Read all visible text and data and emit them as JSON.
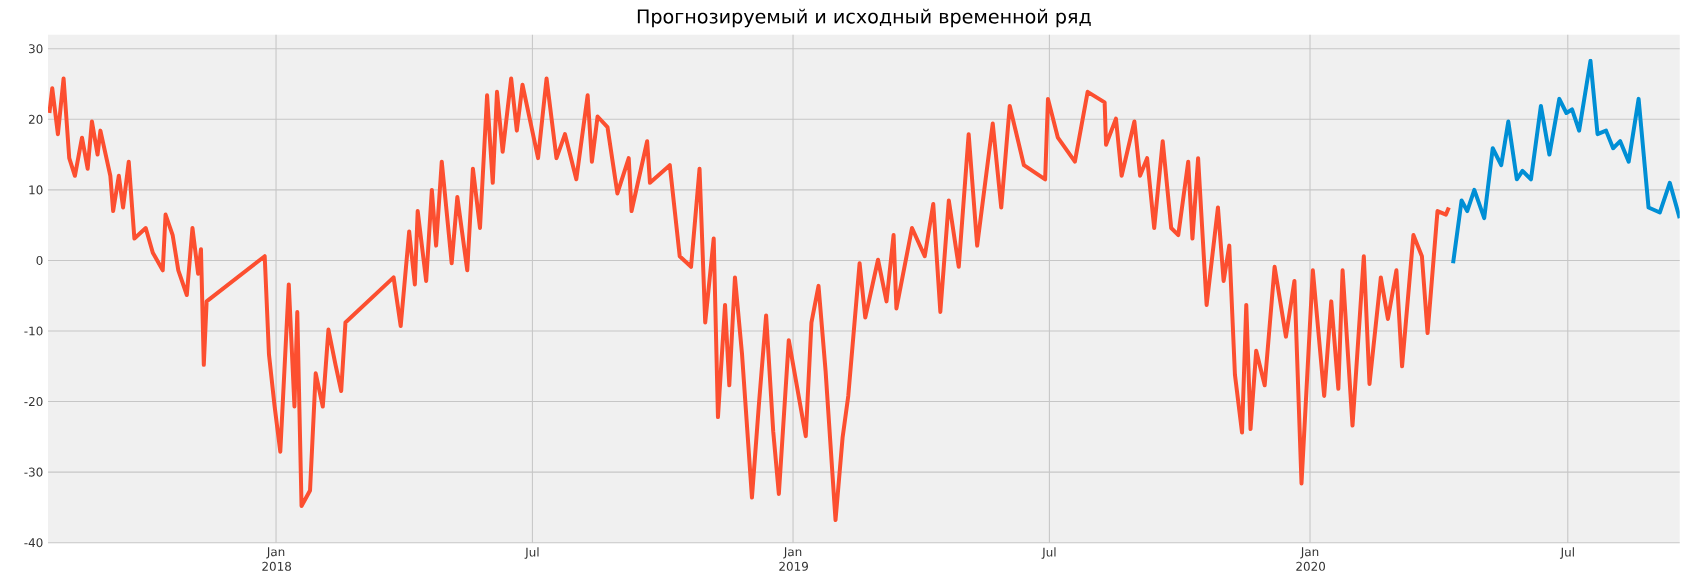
{
  "chart_data": {
    "type": "line",
    "title": "Прогнозируемый и исходный временной ряд",
    "grid": true,
    "line_style": "solid",
    "marker": "none",
    "xlim": [
      "2017-07-24",
      "2020-09-18"
    ],
    "ylim": [
      -40,
      32
    ],
    "yticks": [
      -40,
      -30,
      -20,
      -10,
      0,
      10,
      20,
      30
    ],
    "xticks": [
      {
        "value": "2018-01-01",
        "label": "Jan 2018"
      },
      {
        "value": "2018-07-01",
        "label": "Jul"
      },
      {
        "value": "2019-01-01",
        "label": "Jan 2019"
      },
      {
        "value": "2019-07-01",
        "label": "Jul"
      },
      {
        "value": "2020-01-01",
        "label": "Jan 2020"
      },
      {
        "value": "2020-07-01",
        "label": "Jul"
      }
    ],
    "series": [
      {
        "color": "#fc4f30",
        "x": [
          "2017-07-25",
          "2017-07-27",
          "2017-07-31",
          "2017-08-04",
          "2017-08-08",
          "2017-08-12",
          "2017-08-17",
          "2017-08-21",
          "2017-08-24",
          "2017-08-28",
          "2017-08-30",
          "2017-09-06",
          "2017-09-08",
          "2017-09-12",
          "2017-09-15",
          "2017-09-19",
          "2017-09-23",
          "2017-10-01",
          "2017-10-06",
          "2017-10-13",
          "2017-10-15",
          "2017-10-20",
          "2017-10-24",
          "2017-10-30",
          "2017-11-03",
          "2017-11-07",
          "2017-11-09",
          "2017-11-11",
          "2017-11-13",
          "2017-12-24",
          "2017-12-27",
          "2017-12-31",
          "2018-01-04",
          "2018-01-10",
          "2018-01-14",
          "2018-01-16",
          "2018-01-19",
          "2018-01-25",
          "2018-01-29",
          "2018-02-03",
          "2018-02-07",
          "2018-02-12",
          "2018-02-16",
          "2018-02-19",
          "2018-03-25",
          "2018-03-30",
          "2018-04-05",
          "2018-04-09",
          "2018-04-11",
          "2018-04-17",
          "2018-04-21",
          "2018-04-24",
          "2018-04-28",
          "2018-05-05",
          "2018-05-09",
          "2018-05-16",
          "2018-05-20",
          "2018-05-25",
          "2018-05-30",
          "2018-06-03",
          "2018-06-06",
          "2018-06-10",
          "2018-06-16",
          "2018-06-20",
          "2018-06-24",
          "2018-07-05",
          "2018-07-11",
          "2018-07-18",
          "2018-07-24",
          "2018-08-01",
          "2018-08-09",
          "2018-08-12",
          "2018-08-16",
          "2018-08-23",
          "2018-08-30",
          "2018-09-07",
          "2018-09-09",
          "2018-09-20",
          "2018-09-22",
          "2018-10-06",
          "2018-10-13",
          "2018-10-21",
          "2018-10-27",
          "2018-10-31",
          "2018-11-06",
          "2018-11-09",
          "2018-11-14",
          "2018-11-17",
          "2018-11-21",
          "2018-11-26",
          "2018-12-03",
          "2018-12-08",
          "2018-12-13",
          "2018-12-18",
          "2018-12-22",
          "2018-12-29",
          "2019-01-10",
          "2019-01-14",
          "2019-01-19",
          "2019-01-24",
          "2019-01-31",
          "2019-02-05",
          "2019-02-09",
          "2019-02-17",
          "2019-02-21",
          "2019-03-02",
          "2019-03-08",
          "2019-03-13",
          "2019-03-15",
          "2019-03-26",
          "2019-04-04",
          "2019-04-10",
          "2019-04-15",
          "2019-04-21",
          "2019-04-28",
          "2019-05-05",
          "2019-05-11",
          "2019-05-22",
          "2019-05-28",
          "2019-06-03",
          "2019-06-13",
          "2019-06-28",
          "2019-06-30",
          "2019-07-07",
          "2019-07-19",
          "2019-07-28",
          "2019-08-09",
          "2019-08-10",
          "2019-08-17",
          "2019-08-21",
          "2019-08-30",
          "2019-09-03",
          "2019-09-08",
          "2019-09-13",
          "2019-09-19",
          "2019-09-25",
          "2019-09-30",
          "2019-10-07",
          "2019-10-10",
          "2019-10-14",
          "2019-10-20",
          "2019-10-28",
          "2019-11-01",
          "2019-11-05",
          "2019-11-09",
          "2019-11-14",
          "2019-11-17",
          "2019-11-20",
          "2019-11-24",
          "2019-11-30",
          "2019-12-07",
          "2019-12-15",
          "2019-12-21",
          "2019-12-26",
          "2020-01-03",
          "2020-01-11",
          "2020-01-16",
          "2020-01-21",
          "2020-01-24",
          "2020-01-31",
          "2020-02-08",
          "2020-02-12",
          "2020-02-20",
          "2020-02-25",
          "2020-03-02",
          "2020-03-06",
          "2020-03-14",
          "2020-03-20",
          "2020-03-24",
          "2020-03-31",
          "2020-04-06",
          "2020-04-08"
        ],
        "values": [
          20.9,
          24.4,
          17.9,
          25.8,
          14.5,
          12,
          17.4,
          13,
          19.7,
          15,
          18.4,
          12,
          7,
          12,
          7.5,
          14,
          3.1,
          4.6,
          1.1,
          -1.4,
          6.5,
          3.6,
          -1.4,
          -4.9,
          4.6,
          -1.9,
          1.6,
          -14.8,
          -5.8,
          0.6,
          -13.3,
          -20.7,
          -27.1,
          -3.4,
          -20.7,
          -7.3,
          -34.8,
          -32.6,
          -16,
          -20.7,
          -9.8,
          -14.8,
          -18.5,
          -8.8,
          -2.4,
          -9.3,
          4.1,
          -3.4,
          7,
          -2.9,
          10,
          2.1,
          14,
          -0.4,
          9,
          -1.4,
          13,
          4.6,
          23.4,
          11,
          23.9,
          15.4,
          25.8,
          18.4,
          24.9,
          14.5,
          25.8,
          14.5,
          17.9,
          11.5,
          23.4,
          14,
          20.4,
          18.9,
          9.5,
          14.5,
          7,
          16.9,
          11,
          13.5,
          0.6,
          -0.9,
          13,
          -8.8,
          3.1,
          -22.2,
          -6.3,
          -17.7,
          -2.4,
          -13.3,
          -33.6,
          -20.2,
          -7.8,
          -24.2,
          -33.1,
          -11.3,
          -24.9,
          -8.8,
          -3.6,
          -15.7,
          -36.8,
          -25.1,
          -19.2,
          -0.4,
          -8.1,
          0.1,
          -5.8,
          3.6,
          -6.8,
          4.6,
          0.6,
          8,
          -7.3,
          8.5,
          -0.9,
          17.9,
          2.1,
          19.4,
          7.5,
          21.9,
          13.5,
          11.5,
          22.9,
          17.4,
          14,
          23.9,
          22.4,
          16.4,
          20.1,
          12,
          19.7,
          12,
          14.5,
          4.6,
          16.9,
          4.6,
          3.6,
          14,
          3.1,
          14.5,
          -6.3,
          7.5,
          -2.9,
          2.1,
          -16.2,
          -24.4,
          -6.3,
          -23.9,
          -12.8,
          -17.7,
          -0.9,
          -10.8,
          -2.9,
          -31.6,
          -1.4,
          -19.2,
          -5.8,
          -18.2,
          -1.4,
          -23.4,
          0.6,
          -17.5,
          -2.4,
          -8.3,
          -1.4,
          -15,
          3.6,
          0.6,
          -10.3,
          7,
          6.5,
          7.5
        ]
      },
      {
        "color": "#008fd5",
        "x": [
          "2020-04-11",
          "2020-04-17",
          "2020-04-21",
          "2020-04-26",
          "2020-05-03",
          "2020-05-09",
          "2020-05-15",
          "2020-05-20",
          "2020-05-26",
          "2020-05-30",
          "2020-06-05",
          "2020-06-12",
          "2020-06-18",
          "2020-06-25",
          "2020-06-30",
          "2020-07-04",
          "2020-07-09",
          "2020-07-17",
          "2020-07-22",
          "2020-07-28",
          "2020-08-02",
          "2020-08-07",
          "2020-08-13",
          "2020-08-20",
          "2020-08-27",
          "2020-09-04",
          "2020-09-11",
          "2020-09-18"
        ],
        "values": [
          -0.4,
          8.5,
          7,
          10,
          6,
          15.9,
          13.5,
          19.7,
          11.5,
          12.7,
          11.5,
          21.9,
          15,
          22.9,
          20.9,
          21.4,
          18.4,
          28.3,
          17.9,
          18.4,
          15.9,
          16.9,
          14,
          22.9,
          7.5,
          6.8,
          11,
          6
        ]
      }
    ]
  }
}
